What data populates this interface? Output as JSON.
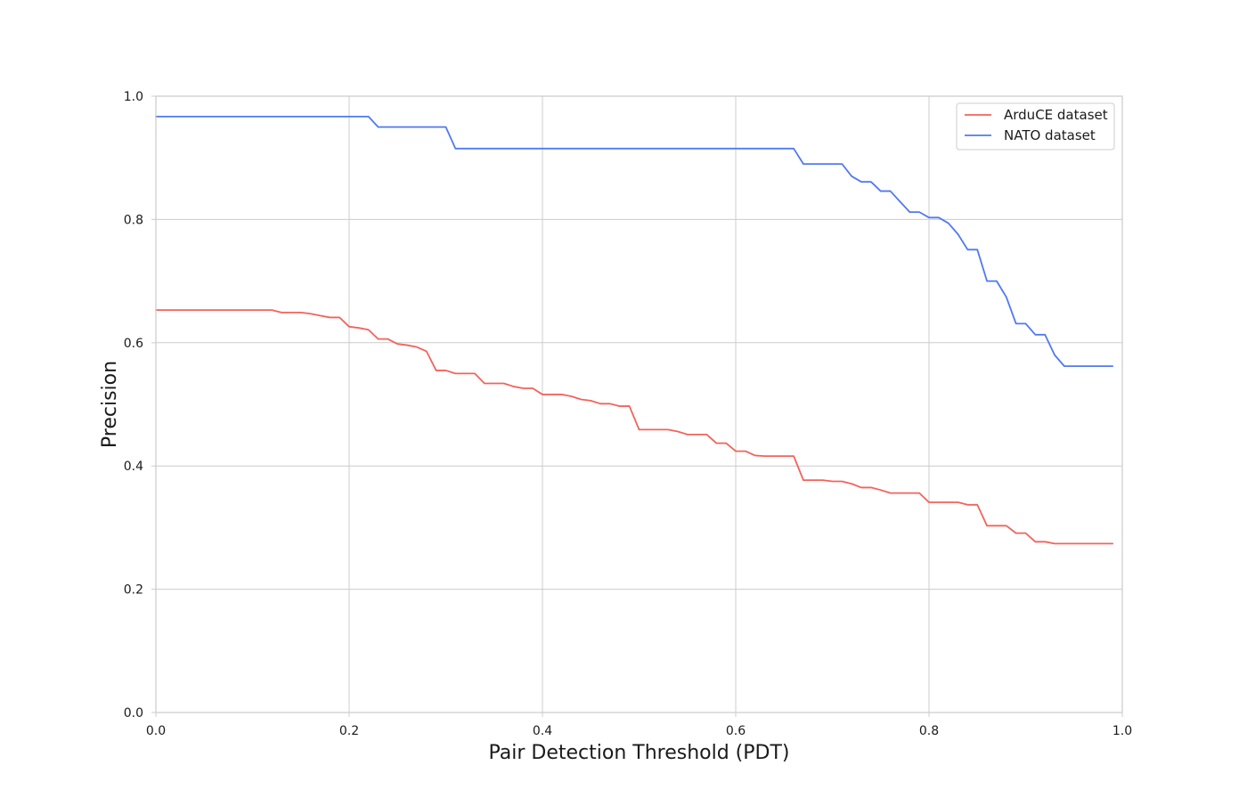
{
  "chart_data": {
    "type": "line",
    "xlabel": "Pair Detection Threshold (PDT)",
    "ylabel": "Precision",
    "xlim": [
      0.0,
      1.0
    ],
    "ylim": [
      0.0,
      1.0
    ],
    "xticks": [
      0.0,
      0.2,
      0.4,
      0.6,
      0.8,
      1.0
    ],
    "yticks": [
      0.0,
      0.2,
      0.4,
      0.6,
      0.8,
      1.0
    ],
    "xtick_labels": [
      "0.0",
      "0.2",
      "0.4",
      "0.6",
      "0.8",
      "1.0"
    ],
    "ytick_labels": [
      "0.0",
      "0.2",
      "0.4",
      "0.6",
      "0.8",
      "1.0"
    ],
    "grid": true,
    "legend_position": "top-right",
    "x": [
      0.0,
      0.01,
      0.02,
      0.03,
      0.04,
      0.05,
      0.06,
      0.07,
      0.08,
      0.09,
      0.1,
      0.11,
      0.12,
      0.13,
      0.14,
      0.15,
      0.16,
      0.17,
      0.18,
      0.19,
      0.2,
      0.21,
      0.22,
      0.23,
      0.24,
      0.25,
      0.26,
      0.27,
      0.28,
      0.29,
      0.3,
      0.31,
      0.32,
      0.33,
      0.34,
      0.35,
      0.36,
      0.37,
      0.38,
      0.39,
      0.4,
      0.41,
      0.42,
      0.43,
      0.44,
      0.45,
      0.46,
      0.47,
      0.48,
      0.49,
      0.5,
      0.51,
      0.52,
      0.53,
      0.54,
      0.55,
      0.56,
      0.57,
      0.58,
      0.59,
      0.6,
      0.61,
      0.62,
      0.63,
      0.64,
      0.65,
      0.66,
      0.67,
      0.68,
      0.69,
      0.7,
      0.71,
      0.72,
      0.73,
      0.74,
      0.75,
      0.76,
      0.77,
      0.78,
      0.79,
      0.8,
      0.81,
      0.82,
      0.83,
      0.84,
      0.85,
      0.86,
      0.87,
      0.88,
      0.89,
      0.9,
      0.91,
      0.92,
      0.93,
      0.94,
      0.95,
      0.96,
      0.97,
      0.98,
      0.99
    ],
    "series": [
      {
        "name": "ArduCE dataset",
        "color": "#f2635c",
        "values": [
          0.653,
          0.653,
          0.653,
          0.653,
          0.653,
          0.653,
          0.653,
          0.653,
          0.653,
          0.653,
          0.653,
          0.653,
          0.653,
          0.649,
          0.649,
          0.649,
          0.647,
          0.644,
          0.641,
          0.641,
          0.626,
          0.624,
          0.621,
          0.606,
          0.606,
          0.598,
          0.596,
          0.593,
          0.586,
          0.555,
          0.555,
          0.55,
          0.55,
          0.55,
          0.534,
          0.534,
          0.534,
          0.529,
          0.526,
          0.526,
          0.516,
          0.516,
          0.516,
          0.513,
          0.508,
          0.506,
          0.501,
          0.501,
          0.497,
          0.497,
          0.459,
          0.459,
          0.459,
          0.459,
          0.456,
          0.451,
          0.451,
          0.451,
          0.437,
          0.437,
          0.424,
          0.424,
          0.417,
          0.416,
          0.416,
          0.416,
          0.416,
          0.377,
          0.377,
          0.377,
          0.375,
          0.375,
          0.371,
          0.365,
          0.365,
          0.361,
          0.356,
          0.356,
          0.356,
          0.356,
          0.341,
          0.341,
          0.341,
          0.341,
          0.337,
          0.337,
          0.303,
          0.303,
          0.303,
          0.291,
          0.291,
          0.277,
          0.277,
          0.274,
          0.274,
          0.274,
          0.274,
          0.274,
          0.274,
          0.274
        ]
      },
      {
        "name": "NATO dataset",
        "color": "#5079f2",
        "values": [
          0.967,
          0.967,
          0.967,
          0.967,
          0.967,
          0.967,
          0.967,
          0.967,
          0.967,
          0.967,
          0.967,
          0.967,
          0.967,
          0.967,
          0.967,
          0.967,
          0.967,
          0.967,
          0.967,
          0.967,
          0.967,
          0.967,
          0.967,
          0.95,
          0.95,
          0.95,
          0.95,
          0.95,
          0.95,
          0.95,
          0.95,
          0.915,
          0.915,
          0.915,
          0.915,
          0.915,
          0.915,
          0.915,
          0.915,
          0.915,
          0.915,
          0.915,
          0.915,
          0.915,
          0.915,
          0.915,
          0.915,
          0.915,
          0.915,
          0.915,
          0.915,
          0.915,
          0.915,
          0.915,
          0.915,
          0.915,
          0.915,
          0.915,
          0.915,
          0.915,
          0.915,
          0.915,
          0.915,
          0.915,
          0.915,
          0.915,
          0.915,
          0.89,
          0.89,
          0.89,
          0.89,
          0.89,
          0.87,
          0.861,
          0.861,
          0.846,
          0.846,
          0.829,
          0.812,
          0.812,
          0.803,
          0.803,
          0.794,
          0.776,
          0.751,
          0.751,
          0.7,
          0.7,
          0.674,
          0.631,
          0.631,
          0.613,
          0.613,
          0.58,
          0.562,
          0.562,
          0.562,
          0.562,
          0.562,
          0.562
        ]
      }
    ]
  }
}
